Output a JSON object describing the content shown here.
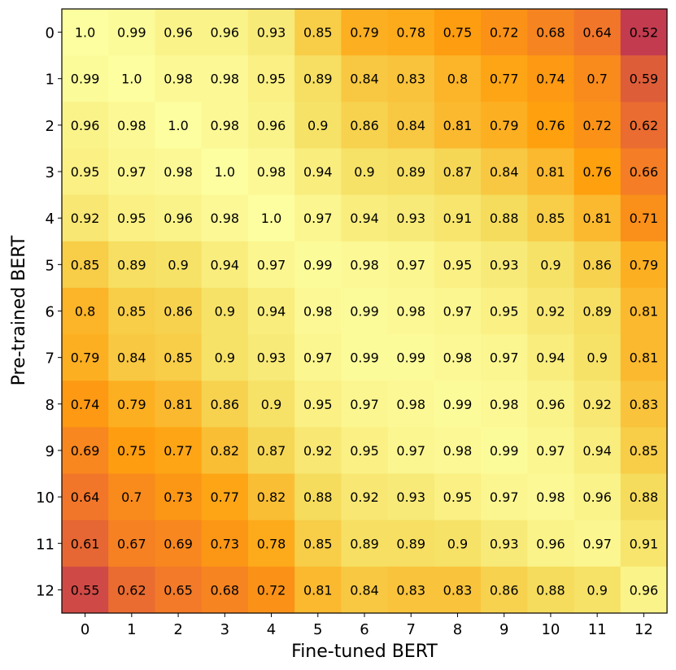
{
  "chart_data": {
    "type": "heatmap",
    "title": "",
    "xlabel": "Fine-tuned BERT",
    "ylabel": "Pre-trained BERT",
    "x_categories": [
      "0",
      "1",
      "2",
      "3",
      "4",
      "5",
      "6",
      "7",
      "8",
      "9",
      "10",
      "11",
      "12"
    ],
    "y_categories": [
      "0",
      "1",
      "2",
      "3",
      "4",
      "5",
      "6",
      "7",
      "8",
      "9",
      "10",
      "11",
      "12"
    ],
    "values": [
      [
        1.0,
        0.99,
        0.96,
        0.96,
        0.93,
        0.85,
        0.79,
        0.78,
        0.75,
        0.72,
        0.68,
        0.64,
        0.52
      ],
      [
        0.99,
        1.0,
        0.98,
        0.98,
        0.95,
        0.89,
        0.84,
        0.83,
        0.8,
        0.77,
        0.74,
        0.7,
        0.59
      ],
      [
        0.96,
        0.98,
        1.0,
        0.98,
        0.96,
        0.9,
        0.86,
        0.84,
        0.81,
        0.79,
        0.76,
        0.72,
        0.62
      ],
      [
        0.95,
        0.97,
        0.98,
        1.0,
        0.98,
        0.94,
        0.9,
        0.89,
        0.87,
        0.84,
        0.81,
        0.76,
        0.66
      ],
      [
        0.92,
        0.95,
        0.96,
        0.98,
        1.0,
        0.97,
        0.94,
        0.93,
        0.91,
        0.88,
        0.85,
        0.81,
        0.71
      ],
      [
        0.85,
        0.89,
        0.9,
        0.94,
        0.97,
        0.99,
        0.98,
        0.97,
        0.95,
        0.93,
        0.9,
        0.86,
        0.79
      ],
      [
        0.8,
        0.85,
        0.86,
        0.9,
        0.94,
        0.98,
        0.99,
        0.98,
        0.97,
        0.95,
        0.92,
        0.89,
        0.81
      ],
      [
        0.79,
        0.84,
        0.85,
        0.9,
        0.93,
        0.97,
        0.99,
        0.99,
        0.98,
        0.97,
        0.94,
        0.9,
        0.81
      ],
      [
        0.74,
        0.79,
        0.81,
        0.86,
        0.9,
        0.95,
        0.97,
        0.98,
        0.99,
        0.98,
        0.96,
        0.92,
        0.83
      ],
      [
        0.69,
        0.75,
        0.77,
        0.82,
        0.87,
        0.92,
        0.95,
        0.97,
        0.98,
        0.99,
        0.97,
        0.94,
        0.85
      ],
      [
        0.64,
        0.7,
        0.73,
        0.77,
        0.82,
        0.88,
        0.92,
        0.93,
        0.95,
        0.97,
        0.98,
        0.96,
        0.88
      ],
      [
        0.61,
        0.67,
        0.69,
        0.73,
        0.78,
        0.85,
        0.89,
        0.89,
        0.9,
        0.93,
        0.96,
        0.97,
        0.91
      ],
      [
        0.55,
        0.62,
        0.65,
        0.68,
        0.72,
        0.81,
        0.84,
        0.83,
        0.83,
        0.86,
        0.88,
        0.9,
        0.96
      ]
    ],
    "value_range": [
      0.52,
      1.0
    ],
    "colormap": "YlOrRd-like",
    "colormap_stops": [
      "#c33b4f",
      "#f2762a",
      "#ffa00e",
      "#f5dc5c",
      "#fdfea0"
    ],
    "grid": false,
    "legend": "none"
  }
}
